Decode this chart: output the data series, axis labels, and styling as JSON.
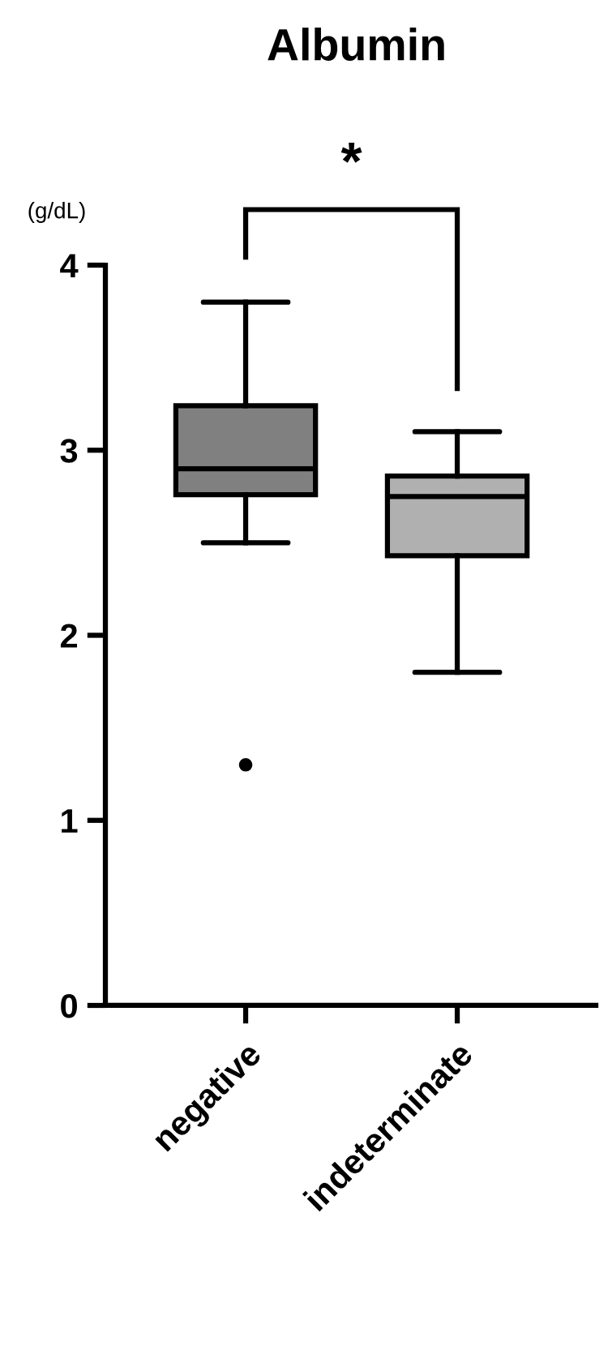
{
  "chart_data": {
    "type": "box",
    "title": "Albumin",
    "ylabel": "(g/dL)",
    "categories": [
      "negative",
      "indeterminate"
    ],
    "series": [
      {
        "colors": [
          "#808080",
          "#b0b0b0"
        ],
        "boxes": [
          {
            "low": 2.5,
            "q1": 2.76,
            "median": 2.9,
            "q3": 3.24,
            "high": 3.8,
            "outliers": [
              1.3
            ]
          },
          {
            "low": 1.8,
            "q1": 2.43,
            "median": 2.75,
            "q3": 2.86,
            "high": 3.1
          }
        ]
      }
    ],
    "ylim": [
      0,
      4
    ],
    "yticks": [
      0,
      1,
      2,
      3,
      4
    ],
    "grid": false,
    "annotations": [
      "*"
    ]
  }
}
